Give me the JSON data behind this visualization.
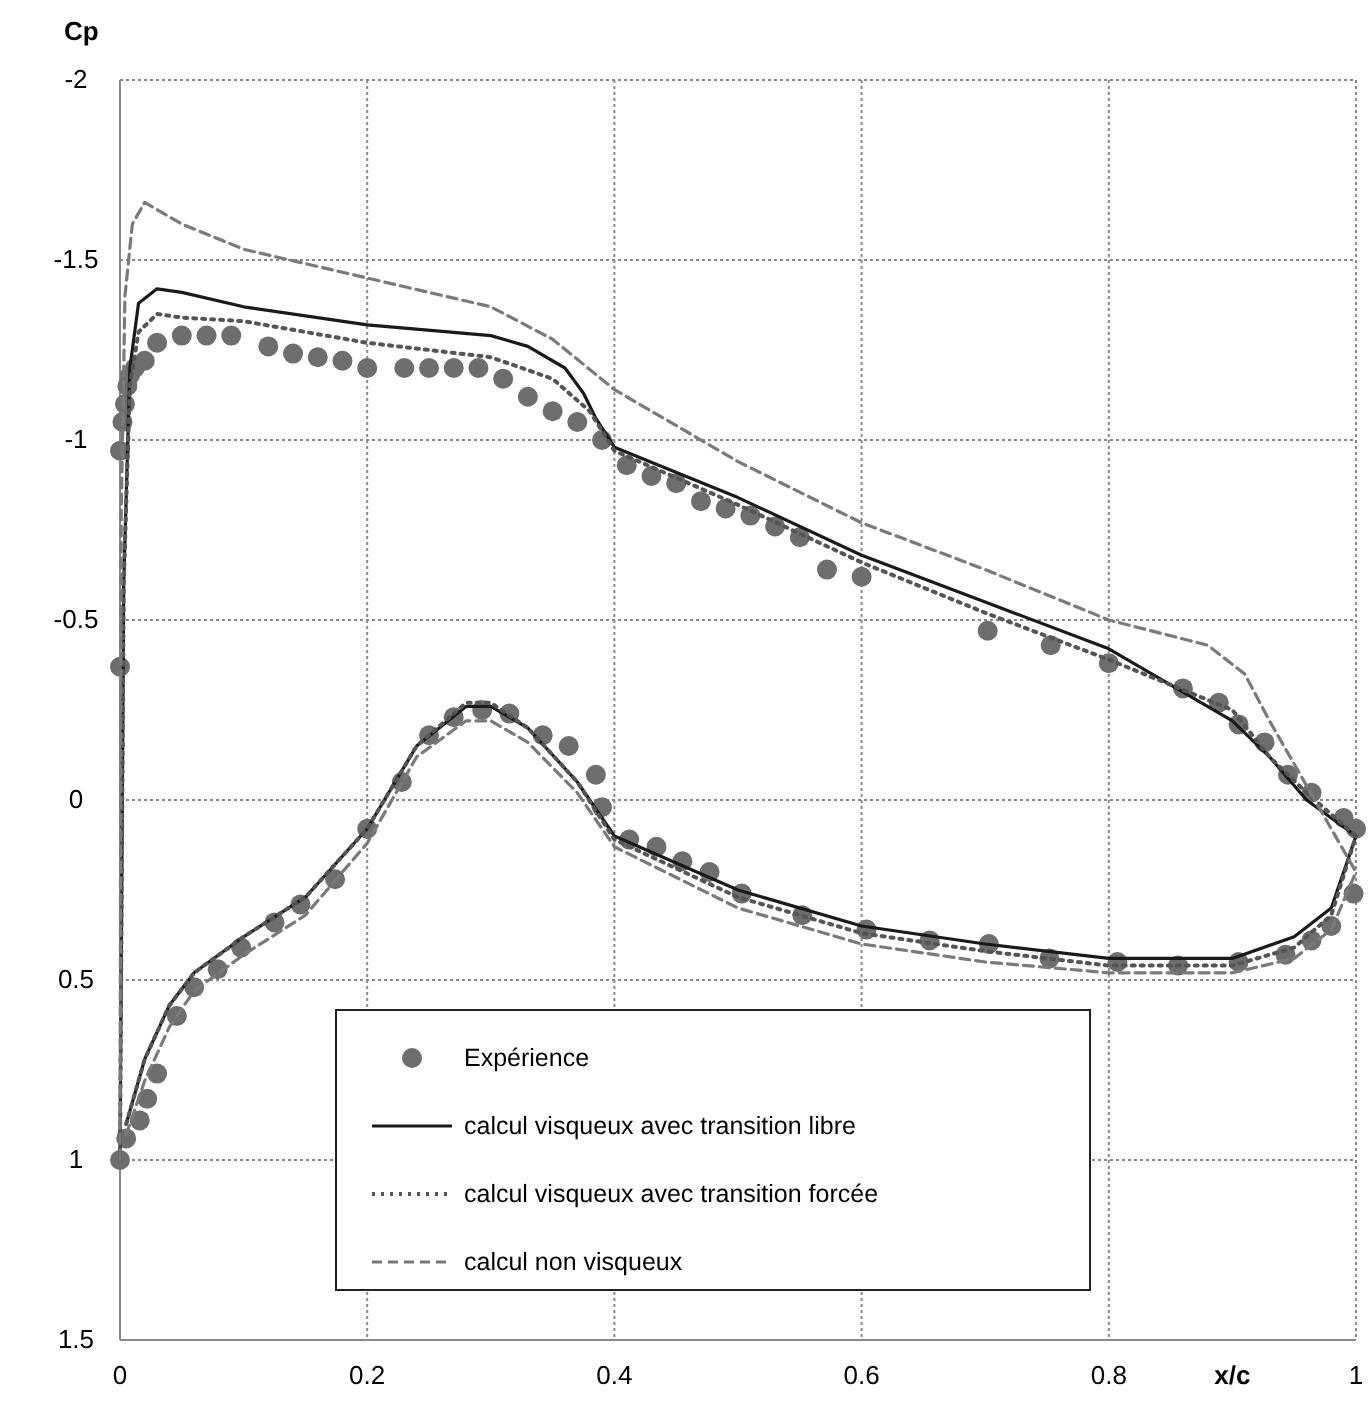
{
  "chart_data": {
    "type": "line",
    "xlabel": "x/c",
    "ylabel": "Cp",
    "xlim": [
      0,
      1
    ],
    "ylim": [
      1.5,
      -2
    ],
    "xticks": [
      0,
      0.2,
      0.4,
      0.6,
      0.8,
      1
    ],
    "yticks": [
      -2,
      -1.5,
      -1,
      -0.5,
      0,
      0.5,
      1,
      1.5
    ],
    "grid": true,
    "legend": "bottom",
    "series": [
      {
        "name": "Expérience",
        "type": "scatter",
        "marker": "circle",
        "color": "#6e6e6e",
        "x": [
          0,
          0,
          0.002,
          0.004,
          0.006,
          0.008,
          0.012,
          0.02,
          0.03,
          0.05,
          0.07,
          0.09,
          0.12,
          0.14,
          0.16,
          0.18,
          0.2,
          0.23,
          0.25,
          0.27,
          0.29,
          0.31,
          0.33,
          0.35,
          0.37,
          0.39,
          0.41,
          0.43,
          0.45,
          0.47,
          0.49,
          0.51,
          0.53,
          0.55,
          0.572,
          0.6,
          0.702,
          0.753,
          0.8,
          0.86,
          0.889,
          0.905,
          0.926,
          0.945,
          0.964,
          0.99,
          1,
          0.998,
          0.98,
          0.964,
          0.943,
          0.905,
          0.856,
          0.807,
          0.752,
          0.703,
          0.655,
          0.604,
          0.552,
          0.503,
          0.477,
          0.455,
          0.434,
          0.412,
          0.39,
          0.385,
          0.363,
          0.342,
          0.315,
          0.293,
          0.27,
          0.25,
          0.228,
          0.2,
          0.174,
          0.146,
          0.125,
          0.098,
          0.079,
          0.06,
          0.046,
          0.03,
          0.022,
          0.016,
          0.005,
          0
        ],
        "values": [
          -0.37,
          -0.97,
          -1.05,
          -1.1,
          -1.15,
          -1.18,
          -1.2,
          -1.22,
          -1.27,
          -1.29,
          -1.29,
          -1.29,
          -1.26,
          -1.24,
          -1.23,
          -1.22,
          -1.2,
          -1.2,
          -1.2,
          -1.2,
          -1.2,
          -1.17,
          -1.12,
          -1.08,
          -1.05,
          -1.0,
          -0.93,
          -0.9,
          -0.88,
          -0.83,
          -0.81,
          -0.79,
          -0.76,
          -0.73,
          -0.64,
          -0.62,
          -0.47,
          -0.43,
          -0.38,
          -0.31,
          -0.27,
          -0.21,
          -0.16,
          -0.07,
          -0.02,
          0.05,
          0.08,
          0.26,
          0.35,
          0.39,
          0.43,
          0.45,
          0.46,
          0.45,
          0.44,
          0.4,
          0.39,
          0.36,
          0.32,
          0.26,
          0.2,
          0.17,
          0.13,
          0.11,
          0.02,
          -0.07,
          -0.15,
          -0.18,
          -0.24,
          -0.25,
          -0.23,
          -0.18,
          -0.05,
          0.08,
          0.22,
          0.29,
          0.34,
          0.41,
          0.47,
          0.52,
          0.6,
          0.76,
          0.83,
          0.89,
          0.94,
          1.0
        ]
      },
      {
        "name": "calcul visqueux avec transition libre",
        "color": "#1a1a1a",
        "line_style": "solid",
        "x": [
          0,
          0.003,
          0.008,
          0.015,
          0.03,
          0.05,
          0.1,
          0.2,
          0.3,
          0.33,
          0.36,
          0.375,
          0.385,
          0.4,
          0.5,
          0.6,
          0.7,
          0.8,
          0.85,
          0.9,
          0.93,
          0.96,
          1
        ],
        "values": [
          1.0,
          -0.6,
          -1.2,
          -1.38,
          -1.42,
          -1.41,
          -1.37,
          -1.32,
          -1.29,
          -1.26,
          -1.2,
          -1.13,
          -1.06,
          -0.98,
          -0.84,
          -0.68,
          -0.55,
          -0.42,
          -0.32,
          -0.22,
          -0.12,
          0.0,
          0.1
        ]
      },
      {
        "color": "#1a1a1a",
        "line_style": "solid",
        "x": [
          0.005,
          0.02,
          0.04,
          0.06,
          0.1,
          0.15,
          0.2,
          0.24,
          0.28,
          0.3,
          0.33,
          0.37,
          0.4,
          0.5,
          0.6,
          0.7,
          0.8,
          0.9,
          0.95,
          0.98,
          1
        ],
        "values": [
          0.9,
          0.72,
          0.57,
          0.48,
          0.38,
          0.27,
          0.08,
          -0.15,
          -0.26,
          -0.26,
          -0.2,
          -0.05,
          0.1,
          0.25,
          0.35,
          0.4,
          0.44,
          0.44,
          0.38,
          0.3,
          0.1
        ]
      },
      {
        "name": "calcul visqueux avec transition forcée",
        "color": "#555555",
        "line_style": "dotted",
        "x": [
          0,
          0.003,
          0.008,
          0.015,
          0.03,
          0.05,
          0.1,
          0.2,
          0.3,
          0.35,
          0.38,
          0.4,
          0.5,
          0.6,
          0.7,
          0.8,
          0.85,
          0.9,
          0.93,
          0.96,
          1
        ],
        "values": [
          1.0,
          -0.6,
          -1.15,
          -1.3,
          -1.35,
          -1.34,
          -1.33,
          -1.27,
          -1.23,
          -1.17,
          -1.08,
          -0.97,
          -0.82,
          -0.66,
          -0.52,
          -0.39,
          -0.32,
          -0.25,
          -0.12,
          -0.02,
          0.1
        ]
      },
      {
        "color": "#555555",
        "line_style": "dotted",
        "x": [
          0.005,
          0.02,
          0.04,
          0.06,
          0.1,
          0.15,
          0.2,
          0.24,
          0.28,
          0.3,
          0.33,
          0.37,
          0.4,
          0.5,
          0.6,
          0.7,
          0.8,
          0.9,
          0.95,
          0.98,
          1
        ],
        "values": [
          0.9,
          0.72,
          0.57,
          0.48,
          0.38,
          0.27,
          0.08,
          -0.15,
          -0.27,
          -0.27,
          -0.2,
          -0.05,
          0.11,
          0.27,
          0.37,
          0.42,
          0.46,
          0.46,
          0.41,
          0.32,
          0.1
        ]
      },
      {
        "name": "calcul non visqueux",
        "color": "#7a7a7a",
        "line_style": "dashed",
        "x": [
          0,
          0.001,
          0.004,
          0.01,
          0.02,
          0.05,
          0.1,
          0.2,
          0.3,
          0.35,
          0.4,
          0.5,
          0.6,
          0.7,
          0.8,
          0.88,
          0.91,
          0.93,
          0.95,
          0.97,
          1
        ],
        "values": [
          1.0,
          -0.8,
          -1.4,
          -1.6,
          -1.66,
          -1.6,
          -1.53,
          -1.45,
          -1.37,
          -1.28,
          -1.14,
          -0.94,
          -0.77,
          -0.64,
          -0.5,
          -0.43,
          -0.35,
          -0.22,
          -0.1,
          0.02,
          0.2
        ]
      },
      {
        "color": "#7a7a7a",
        "line_style": "dashed",
        "x": [
          0.005,
          0.02,
          0.04,
          0.06,
          0.1,
          0.15,
          0.2,
          0.24,
          0.28,
          0.3,
          0.33,
          0.37,
          0.4,
          0.5,
          0.6,
          0.7,
          0.8,
          0.9,
          0.95,
          0.98,
          1
        ],
        "values": [
          0.93,
          0.78,
          0.63,
          0.53,
          0.43,
          0.32,
          0.12,
          -0.12,
          -0.22,
          -0.22,
          -0.16,
          -0.02,
          0.13,
          0.3,
          0.4,
          0.45,
          0.48,
          0.48,
          0.44,
          0.36,
          0.2
        ]
      }
    ]
  }
}
